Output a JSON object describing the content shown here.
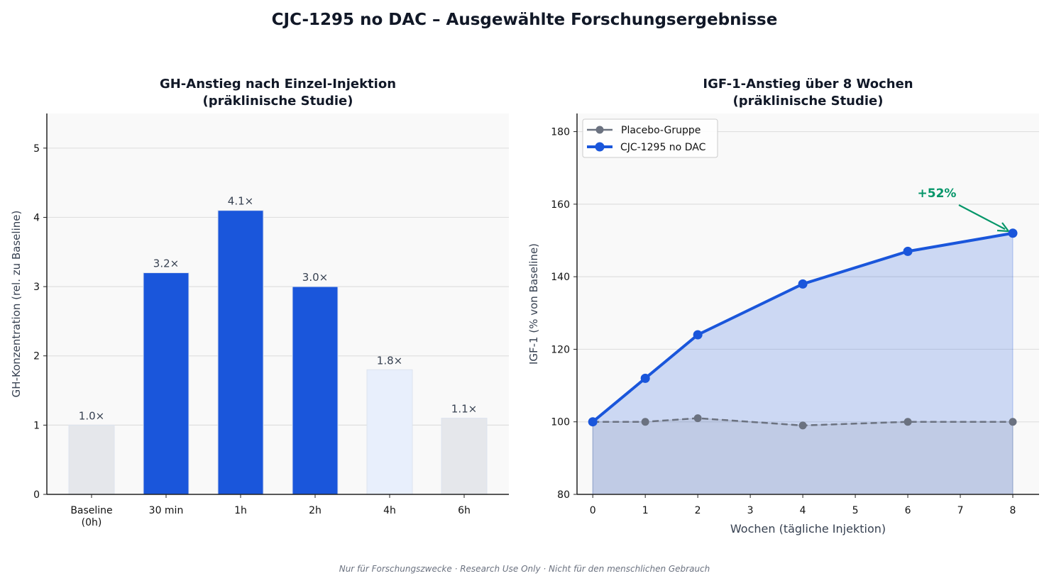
{
  "title": "CJC-1295 no DAC – Ausgewählte Forschungsergebnisse",
  "footer": "Nur für Forschungszwecke · Research Use Only · Nicht für den menschlichen Gebrauch",
  "colors": {
    "primary": "#1a56db",
    "gray_bar": "#e5e7eb",
    "light_bar": "#e8effc",
    "placebo": "#6b7280",
    "annotation": "#059669",
    "panel_bg": "#f9f9f9"
  },
  "chart_data": [
    {
      "type": "bar",
      "title": "GH-Anstieg nach Einzel-Injektion\n(präklinische Studie)",
      "xlabel": "",
      "ylabel": "GH-Konzentration (rel. zu Baseline)",
      "categories": [
        "Baseline\n(0h)",
        "30 min",
        "1h",
        "2h",
        "4h",
        "6h"
      ],
      "values": [
        1.0,
        3.2,
        4.1,
        3.0,
        1.8,
        1.1
      ],
      "data_labels": [
        "1.0×",
        "3.2×",
        "4.1×",
        "3.0×",
        "1.8×",
        "1.1×"
      ],
      "bar_colors": [
        "#e5e7eb",
        "#1a56db",
        "#1a56db",
        "#1a56db",
        "#e8effc",
        "#e5e7eb"
      ],
      "ylim": [
        0,
        5.5
      ],
      "yticks": [
        0,
        1,
        2,
        3,
        4,
        5
      ],
      "grid": "y"
    },
    {
      "type": "line",
      "title": "IGF-1-Anstieg über 8 Wochen\n(präklinische Studie)",
      "xlabel": "Wochen (tägliche Injektion)",
      "ylabel": "IGF-1 (% von Baseline)",
      "x": [
        0,
        1,
        2,
        4,
        6,
        8
      ],
      "series": [
        {
          "name": "Placebo-Gruppe",
          "values": [
            100,
            100,
            101,
            99,
            100,
            100
          ],
          "color": "#6b7280",
          "style": "dashed"
        },
        {
          "name": "CJC-1295 no DAC",
          "values": [
            100,
            112,
            124,
            138,
            147,
            152
          ],
          "color": "#1a56db",
          "style": "solid",
          "fill": true
        }
      ],
      "xlim": [
        -0.3,
        8.5
      ],
      "ylim": [
        80,
        185
      ],
      "xticks": [
        0,
        1,
        2,
        3,
        4,
        5,
        6,
        7,
        8
      ],
      "yticks": [
        80,
        100,
        120,
        140,
        160,
        180
      ],
      "annotation": {
        "text": "+52%",
        "x": 8,
        "y": 152
      },
      "legend": "top-left",
      "grid": "y"
    }
  ]
}
